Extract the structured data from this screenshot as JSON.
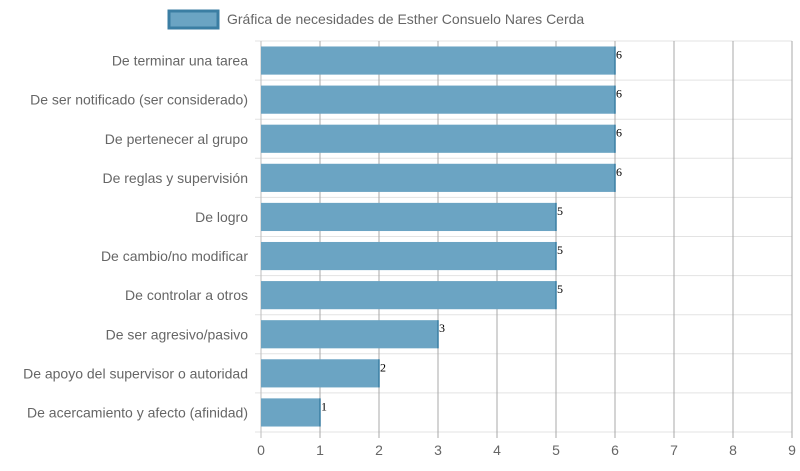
{
  "chart_data": {
    "type": "bar",
    "orientation": "horizontal",
    "title": "",
    "xlabel": "",
    "ylabel": "",
    "xlim": [
      0,
      9
    ],
    "x_ticks": [
      "0",
      "1",
      "2",
      "3",
      "4",
      "5",
      "6",
      "7",
      "8",
      "9"
    ],
    "grid": true,
    "legend_position": "top",
    "categories": [
      "De terminar una tarea",
      "De ser notificado (ser considerado)",
      "De pertenecer al grupo",
      "De reglas y supervisión",
      "De logro",
      "De cambio/no modificar",
      "De controlar a otros",
      "De ser agresivo/pasivo",
      "De apoyo del supervisor o autoridad",
      "De acercamiento y afecto (afinidad)"
    ],
    "series": [
      {
        "name": "Gráfica de necesidades de Esther Consuelo Nares Cerda",
        "values": [
          6,
          6,
          6,
          6,
          5,
          5,
          5,
          3,
          2,
          1
        ],
        "data_labels": [
          "6",
          "6",
          "6",
          "6",
          "5",
          "5",
          "5",
          "3",
          "2",
          "1"
        ],
        "color": "#6ba4c3",
        "border_color": "#3b7ea3"
      }
    ]
  }
}
